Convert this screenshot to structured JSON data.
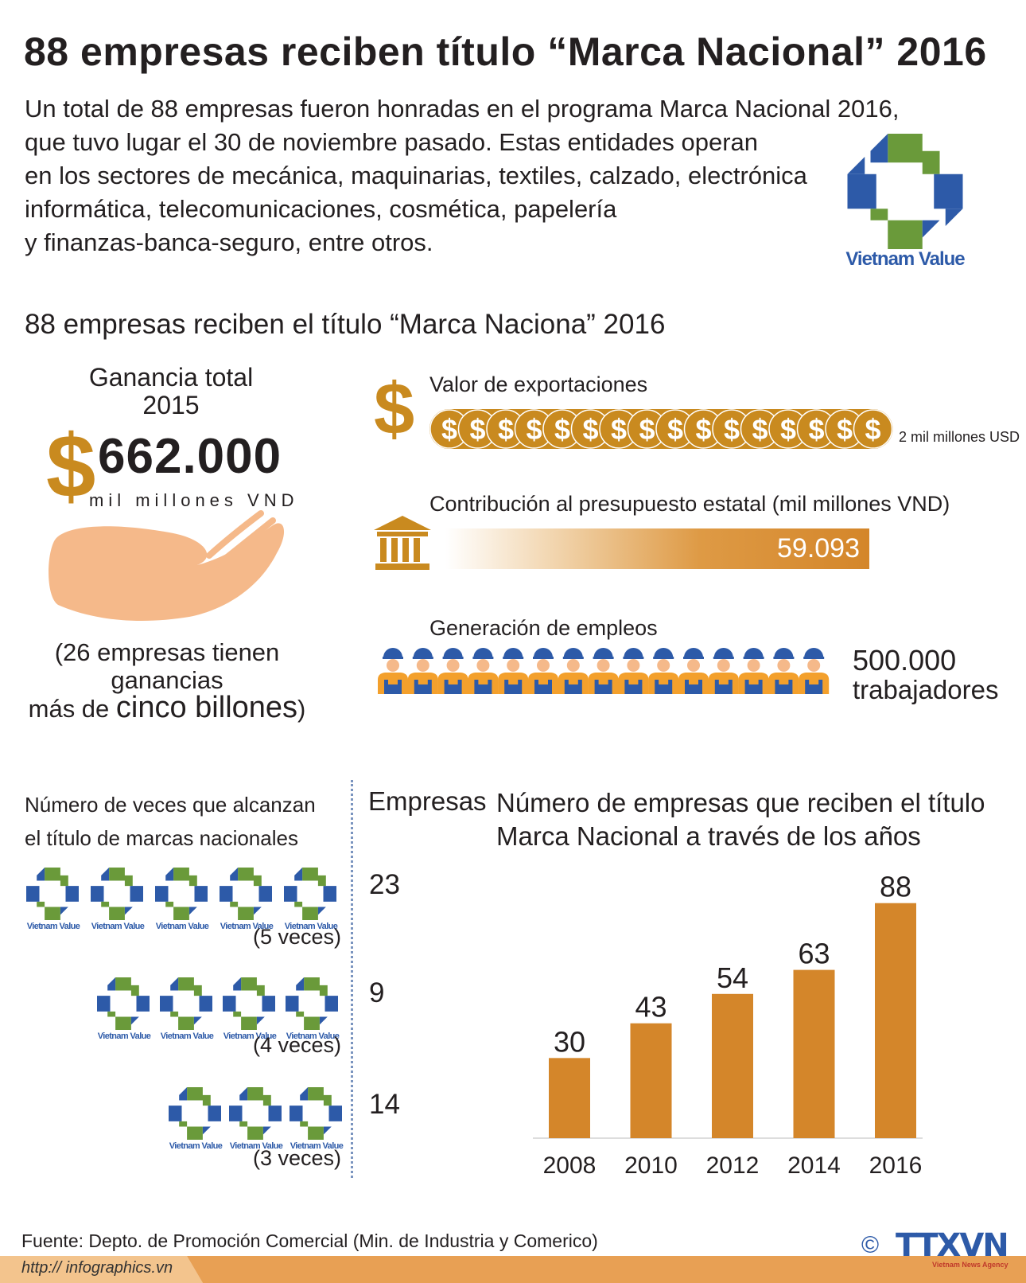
{
  "title": "88 empresas reciben título “Marca Nacional” 2016",
  "intro": {
    "lines": [
      "Un total de 88 empresas fueron honradas en el programa Marca Nacional 2016,",
      "que tuvo lugar el 30 de noviembre pasado. Estas entidades operan",
      "en los sectores de mecánica, maquinarias, textiles, calzado, electrónica",
      "informática, telecomunicaciones, cosmética, papelería",
      "y finanzas-banca-seguro, entre otros."
    ]
  },
  "logo_text": "Vietnam Value",
  "subtitle": "88 empresas reciben el título “Marca Naciona” 2016",
  "ganancia": {
    "label_line1": "Ganancia total",
    "label_line2": "2015",
    "currency_symbol": "$",
    "value": "662.000",
    "unit": "mil millones VND",
    "note_line1": "(26 empresas tienen",
    "note_line2": "ganancias",
    "note_line3_a": "más de ",
    "note_line3_b": "cinco billones",
    "note_line3_c": ")"
  },
  "exportaciones": {
    "label": "Valor de exportaciones",
    "symbol": "$",
    "coin_count": 16,
    "note": "2 mil millones USD"
  },
  "presupuesto": {
    "label": "Contribución al presupuesto estatal (mil millones VND)",
    "value": "59.093"
  },
  "empleos": {
    "label": "Generación de empleos",
    "worker_count": 15,
    "value": "500.000",
    "unit": "trabajadores"
  },
  "veces": {
    "title_line1": "Número de veces que alcanzan",
    "title_line2": "el título de marcas nacionales",
    "groups": [
      {
        "logos": 5,
        "label": "(5 veces)",
        "count": "23"
      },
      {
        "logos": 4,
        "label": "(4 veces)",
        "count": "9"
      },
      {
        "logos": 3,
        "label": "(3 veces)",
        "count": "14"
      }
    ]
  },
  "chart_data": {
    "type": "bar",
    "title": "Número de empresas que reciben el título Marca Nacional a través de los años",
    "ylabel": "Empresas",
    "categories": [
      "2008",
      "2010",
      "2012",
      "2014",
      "2016"
    ],
    "values": [
      30,
      43,
      54,
      63,
      88
    ],
    "ylim": [
      0,
      90
    ],
    "color": "#d4862a",
    "grid": false
  },
  "chart_title_line1": "Número de empresas que reciben el título",
  "chart_title_line2": "Marca Nacional a través de los años",
  "source": "Fuente: Depto. de Promoción Comercial (Min. de Industria y Comerico)",
  "url": "http:// infographics.vn",
  "copyright_symbol": "©",
  "agency": "TTXVN",
  "agency_sub": "Vietnam News Agency",
  "colors": {
    "gold": "#c98a1f",
    "bar": "#d4862a",
    "blue": "#2d5aa8",
    "green": "#6a9a3a"
  }
}
